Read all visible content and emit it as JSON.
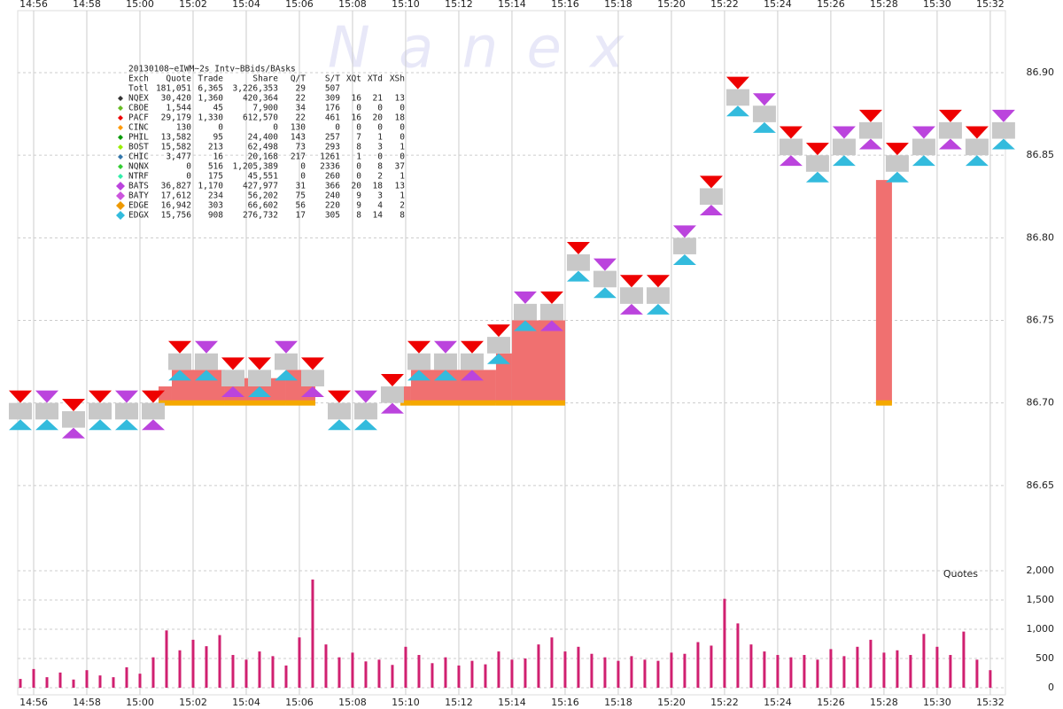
{
  "chart_data": [
    {
      "type": "range",
      "title": "20130108~eIWM~2s Intv~BBids/BAsks",
      "watermark": "N a n e x",
      "xlim": [
        895.4,
        932.57
      ],
      "xticks": [
        {
          "value": 896,
          "label": "14:56"
        },
        {
          "value": 898,
          "label": "14:58"
        },
        {
          "value": 900,
          "label": "15:00"
        },
        {
          "value": 902,
          "label": "15:02"
        },
        {
          "value": 904,
          "label": "15:04"
        },
        {
          "value": 906,
          "label": "15:06"
        },
        {
          "value": 908,
          "label": "15:08"
        },
        {
          "value": 910,
          "label": "15:10"
        },
        {
          "value": 912,
          "label": "15:12"
        },
        {
          "value": 914,
          "label": "15:14"
        },
        {
          "value": 916,
          "label": "15:16"
        },
        {
          "value": 918,
          "label": "15:18"
        },
        {
          "value": 920,
          "label": "15:20"
        },
        {
          "value": 922,
          "label": "15:22"
        },
        {
          "value": 924,
          "label": "15:24"
        },
        {
          "value": 926,
          "label": "15:26"
        },
        {
          "value": 928,
          "label": "15:28"
        },
        {
          "value": 930,
          "label": "15:30"
        },
        {
          "value": 932,
          "label": "15:32"
        }
      ],
      "ylim": [
        86.622,
        86.944
      ],
      "yticks": [
        86.65,
        {
          "value": 86.7,
          "label": "86.70"
        },
        86.75,
        {
          "value": 86.8,
          "label": "86.80"
        },
        86.85,
        {
          "value": 86.9,
          "label": "86.90"
        }
      ],
      "grid": true,
      "ask_color": "#ee0000",
      "bid_color": "#33bbdd",
      "band_color": "#c8c8c8",
      "x": [
        895.5,
        896.5,
        897.5,
        898.5,
        899.5,
        900.5,
        901.5,
        902.5,
        903.5,
        904.5,
        905.5,
        906.5,
        907.5,
        908.5,
        909.5,
        910.5,
        911.5,
        912.5,
        913.5,
        914.5,
        915.5,
        916.5,
        917.5,
        918.5,
        919.5,
        920.5,
        921.5,
        922.5,
        923.5,
        924.5,
        925.5,
        926.5,
        927.5,
        928.5,
        929.5,
        930.5,
        931.5,
        932.5
      ],
      "bid": [
        86.69,
        86.69,
        86.685,
        86.69,
        86.69,
        86.69,
        86.72,
        86.72,
        86.71,
        86.71,
        86.72,
        86.71,
        86.69,
        86.69,
        86.7,
        86.72,
        86.72,
        86.72,
        86.73,
        86.75,
        86.75,
        86.78,
        86.77,
        86.76,
        86.76,
        86.79,
        86.82,
        86.88,
        86.87,
        86.85,
        86.84,
        86.85,
        86.86,
        86.84,
        86.85,
        86.86,
        86.85,
        86.86
      ],
      "ask": [
        86.7,
        86.7,
        86.695,
        86.7,
        86.7,
        86.7,
        86.73,
        86.73,
        86.72,
        86.72,
        86.73,
        86.72,
        86.7,
        86.7,
        86.71,
        86.73,
        86.73,
        86.73,
        86.74,
        86.76,
        86.76,
        86.79,
        86.78,
        86.77,
        86.77,
        86.8,
        86.83,
        86.89,
        86.88,
        86.86,
        86.85,
        86.86,
        86.87,
        86.85,
        86.86,
        86.87,
        86.86,
        86.87
      ],
      "area": {
        "base": 86.7,
        "color": "#f07070",
        "base_color": "#f5a800",
        "x": [
          900.7,
          901.2,
          903.2,
          905.5,
          906.6,
          909.8,
          910.2,
          913.4,
          914.0,
          916.0,
          927.7,
          928.3
        ],
        "values": [
          86.71,
          86.72,
          86.715,
          86.72,
          null,
          86.71,
          86.72,
          86.73,
          86.75,
          null,
          86.835,
          null
        ]
      },
      "legend": {
        "columns": [
          "Exch",
          "Quote",
          "Trade",
          "Share",
          "Q/T",
          "S/T",
          "XQt",
          "XTd",
          "XSh"
        ],
        "rows": [
          {
            "cells": [
              "Totl",
              "181,051",
              "6,365",
              "3,226,353",
              "29",
              "507"
            ],
            "color": null
          },
          {
            "cells": [
              "NQEX",
              "30,420",
              "1,360",
              "420,364",
              "22",
              "309",
              "16",
              "21",
              "13"
            ],
            "color": "#333333"
          },
          {
            "cells": [
              "CBOE",
              "1,544",
              "45",
              "7,900",
              "34",
              "176",
              "0",
              "0",
              "0"
            ],
            "color": "#66bb22"
          },
          {
            "cells": [
              "PACF",
              "29,179",
              "1,330",
              "612,570",
              "22",
              "461",
              "16",
              "20",
              "18"
            ],
            "color": "#ee0000"
          },
          {
            "cells": [
              "CINC",
              "130",
              "0",
              "0",
              "130",
              "0",
              "0",
              "0",
              "0"
            ],
            "color": "#ff9900"
          },
          {
            "cells": [
              "PHIL",
              "13,582",
              "95",
              "24,400",
              "143",
              "257",
              "7",
              "1",
              "0"
            ],
            "color": "#009900"
          },
          {
            "cells": [
              "BOST",
              "15,582",
              "213",
              "62,498",
              "73",
              "293",
              "8",
              "3",
              "1"
            ],
            "color": "#99ee00"
          },
          {
            "cells": [
              "CHIC",
              "3,477",
              "16",
              "20,168",
              "217",
              "1261",
              "1",
              "0",
              "0"
            ],
            "color": "#3377aa"
          },
          {
            "cells": [
              "NQNX",
              "0",
              "516",
              "1,205,389",
              "0",
              "2336",
              "0",
              "8",
              "37"
            ],
            "color": "#33cc33"
          },
          {
            "cells": [
              "NTRF",
              "0",
              "175",
              "45,551",
              "0",
              "260",
              "0",
              "2",
              "1"
            ],
            "color": "#33eeaa"
          },
          {
            "cells": [
              "BATS",
              "36,827",
              "1,170",
              "427,977",
              "31",
              "366",
              "20",
              "18",
              "13"
            ],
            "color": "#bb44dd"
          },
          {
            "cells": [
              "BATY",
              "17,612",
              "234",
              "56,202",
              "75",
              "240",
              "9",
              "3",
              "1"
            ],
            "color": "#cc55dd"
          },
          {
            "cells": [
              "EDGE",
              "16,942",
              "303",
              "66,602",
              "56",
              "220",
              "9",
              "4",
              "2"
            ],
            "color": "#ee9900"
          },
          {
            "cells": [
              "EDGX",
              "15,756",
              "908",
              "276,732",
              "17",
              "305",
              "8",
              "14",
              "8"
            ],
            "color": "#33bbdd"
          }
        ]
      }
    },
    {
      "type": "bar",
      "y_label": "Quotes",
      "ylim": [
        0,
        2000
      ],
      "yticks": [
        0,
        500,
        {
          "value": 1000,
          "label": "1,000"
        },
        {
          "value": 1500,
          "label": "1,500"
        },
        {
          "value": 2000,
          "label": "2,000"
        }
      ],
      "color": "#d02070",
      "x": [
        895.5,
        896,
        896.5,
        897,
        897.5,
        898,
        898.5,
        899,
        899.5,
        900,
        900.5,
        901,
        901.5,
        902,
        902.5,
        903,
        903.5,
        904,
        904.5,
        905,
        905.5,
        906,
        906.5,
        907,
        907.5,
        908,
        908.5,
        909,
        909.5,
        910,
        910.5,
        911,
        911.5,
        912,
        912.5,
        913,
        913.5,
        914,
        914.5,
        915,
        915.5,
        916,
        916.5,
        917,
        917.5,
        918,
        918.5,
        919,
        919.5,
        920,
        920.5,
        921,
        921.5,
        922,
        922.5,
        923,
        923.5,
        924,
        924.5,
        925,
        925.5,
        926,
        926.5,
        927,
        927.5,
        928,
        928.5,
        929,
        929.5,
        930,
        930.5,
        931,
        931.5,
        932
      ],
      "values": [
        150,
        320,
        180,
        260,
        140,
        300,
        210,
        180,
        350,
        240,
        520,
        980,
        640,
        820,
        710,
        900,
        560,
        480,
        620,
        540,
        380,
        860,
        1850,
        740,
        520,
        600,
        450,
        480,
        390,
        700,
        560,
        420,
        520,
        380,
        460,
        400,
        620,
        480,
        500,
        740,
        860,
        620,
        700,
        580,
        520,
        460,
        540,
        480,
        460,
        600,
        580,
        780,
        720,
        1520,
        1100,
        740,
        620,
        560,
        520,
        560,
        480,
        660,
        540,
        700,
        820,
        600,
        640,
        560,
        920,
        700,
        560,
        960,
        480,
        300
      ]
    }
  ]
}
